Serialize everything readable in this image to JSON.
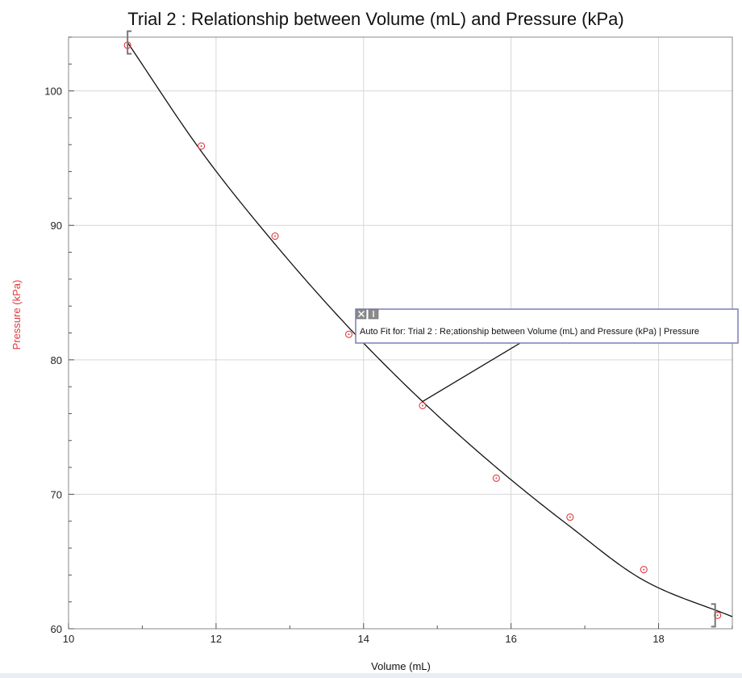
{
  "chart_data": {
    "type": "scatter",
    "title": "Trial 2 : Relationship between Volume (mL) and Pressure (kPa)",
    "xlabel": "Volume  (mL)",
    "ylabel": "Pressure  (kPa)",
    "xlim": [
      10,
      19
    ],
    "ylim": [
      60,
      104
    ],
    "x_ticks": [
      10,
      12,
      14,
      16,
      18
    ],
    "y_ticks": [
      60,
      70,
      80,
      90,
      100
    ],
    "grid": true,
    "series": [
      {
        "marker_color": "#e03a3e",
        "x": [
          10.8,
          11.8,
          12.8,
          13.8,
          14.8,
          15.8,
          16.8,
          17.8,
          18.8
        ],
        "y": [
          103.4,
          95.9,
          89.2,
          81.9,
          76.6,
          71.2,
          68.3,
          64.4,
          61.0
        ]
      }
    ],
    "fit": {
      "kind": "auto-fit curve",
      "color": "#111111",
      "x_range": [
        10.8,
        19
      ],
      "curve_x": [
        10.8,
        11.8,
        12.8,
        13.8,
        14.8,
        15.8,
        16.8,
        17.8,
        19.0
      ],
      "curve_y": [
        103.6,
        95.5,
        88.6,
        82.4,
        76.9,
        72.0,
        67.6,
        63.6,
        60.9
      ]
    },
    "annotation": {
      "text": "Auto Fit for: Trial 2 : Re;ationship between Volume (mL) and Pressure (kPa) | Pressure",
      "anchor": {
        "x": 14.8,
        "y": 76.6
      }
    }
  }
}
